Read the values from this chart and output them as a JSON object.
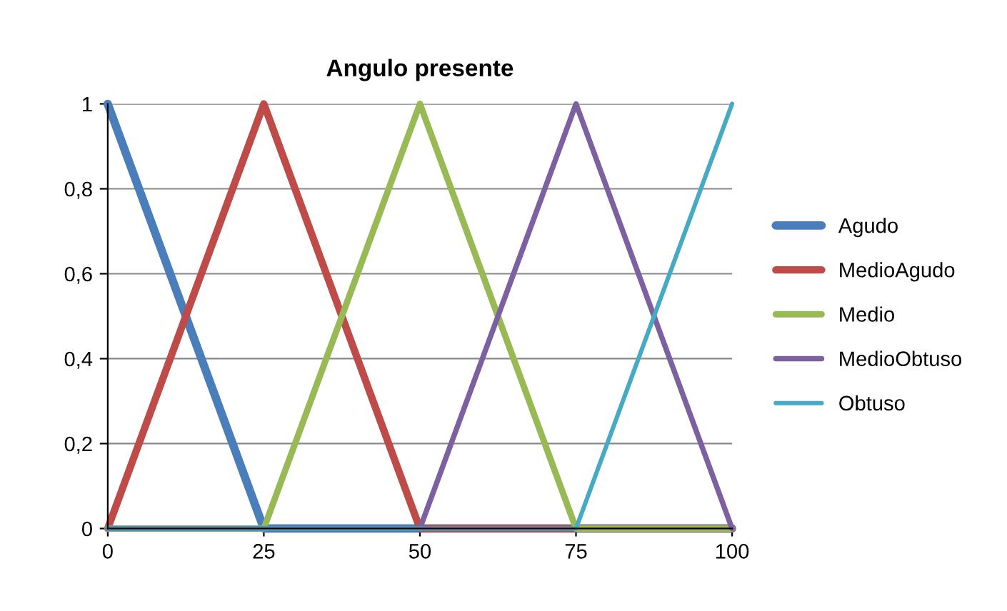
{
  "chart_data": {
    "type": "line",
    "title": "Angulo presente",
    "xlim": [
      0,
      100
    ],
    "xticks": [
      0,
      25,
      50,
      75,
      100
    ],
    "ylim": [
      0,
      1
    ],
    "yticks": [
      0,
      {
        "value": 0.2,
        "label": "0,2"
      },
      {
        "value": 0.4,
        "label": "0,4"
      },
      {
        "value": 0.6,
        "label": "0,6"
      },
      {
        "value": 0.8,
        "label": "0,8"
      },
      1
    ],
    "grid": "y",
    "legend": "right",
    "marker": "none",
    "line_style": "solid",
    "series": [
      {
        "name": "Agudo",
        "color": "#4a7ebb",
        "x": [
          0,
          25,
          100
        ],
        "values": [
          1,
          0,
          0
        ]
      },
      {
        "name": "MedioAgudo",
        "color": "#be4b48",
        "x": [
          0,
          25,
          50,
          100
        ],
        "values": [
          0,
          1,
          0,
          0
        ]
      },
      {
        "name": "Medio",
        "color": "#98b954",
        "x": [
          0,
          25,
          50,
          75,
          100
        ],
        "values": [
          0,
          0,
          1,
          0,
          0
        ]
      },
      {
        "name": "MedioObtuso",
        "color": "#7d60a0",
        "x": [
          0,
          50,
          75,
          100
        ],
        "values": [
          0,
          0,
          1,
          0
        ]
      },
      {
        "name": "Obtuso",
        "color": "#46aac5",
        "x": [
          0,
          75,
          100
        ],
        "values": [
          0,
          0,
          1
        ]
      }
    ]
  }
}
